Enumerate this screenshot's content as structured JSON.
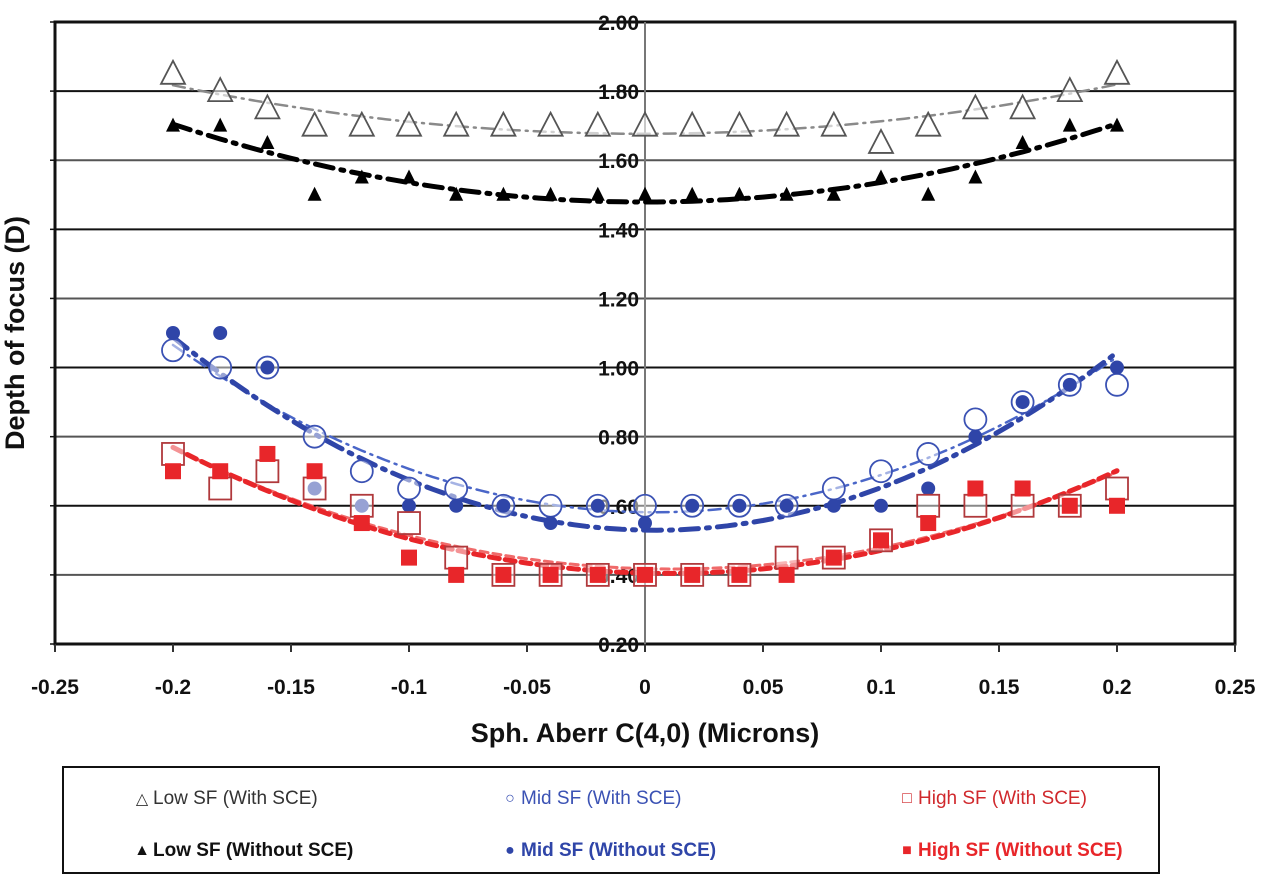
{
  "chart_data": {
    "type": "scatter",
    "title": "",
    "xlabel": "Sph. Aberr C(4,0) (Microns)",
    "ylabel": "Depth of focus (D)",
    "xlim": [
      -0.25,
      0.25
    ],
    "ylim": [
      0.2,
      2.0
    ],
    "xticks": [
      "-0.25",
      "-0.2",
      "-0.15",
      "-0.1",
      "-0.05",
      "0",
      "0.05",
      "0.1",
      "0.15",
      "0.2",
      "0.25"
    ],
    "xtick_values": [
      -0.25,
      -0.2,
      -0.15,
      -0.1,
      -0.05,
      0,
      0.05,
      0.1,
      0.15,
      0.2,
      0.25
    ],
    "yticks": [
      "0.20",
      "0.40",
      "0.60",
      "0.80",
      "1.00",
      "1.20",
      "1.40",
      "1.60",
      "1.80",
      "2.00"
    ],
    "ytick_values": [
      0.2,
      0.4,
      0.6,
      0.8,
      1.0,
      1.2,
      1.4,
      1.6,
      1.8,
      2.0
    ],
    "grid": "horizontal",
    "legend_position": "bottom",
    "trendlines": "quadratic fit per series (dash-dot / dashed)",
    "x": [
      -0.2,
      -0.18,
      -0.16,
      -0.14,
      -0.12,
      -0.1,
      -0.08,
      -0.06,
      -0.04,
      -0.02,
      0,
      0.02,
      0.04,
      0.06,
      0.08,
      0.1,
      0.12,
      0.14,
      0.16,
      0.18,
      0.2
    ],
    "series": [
      {
        "name": "Low SF (With SCE)",
        "marker": "triangle-open",
        "color": "#555555",
        "line": "dash-dot",
        "line_color": "#8a8a8a",
        "values": [
          1.85,
          1.8,
          1.75,
          1.7,
          1.7,
          1.7,
          1.7,
          1.7,
          1.7,
          1.7,
          1.7,
          1.7,
          1.7,
          1.7,
          1.7,
          1.65,
          1.7,
          1.75,
          1.75,
          1.8,
          1.85
        ]
      },
      {
        "name": "Low SF (Without SCE)",
        "marker": "triangle-filled",
        "color": "#000000",
        "line": "dash-dot-bold",
        "line_color": "#000000",
        "values": [
          1.7,
          1.7,
          1.65,
          1.5,
          1.55,
          1.55,
          1.5,
          1.5,
          1.5,
          1.5,
          1.5,
          1.5,
          1.5,
          1.5,
          1.5,
          1.55,
          1.5,
          1.55,
          1.65,
          1.7,
          1.7
        ]
      },
      {
        "name": "Mid SF (With SCE)",
        "marker": "circle-open",
        "color": "#3b52b4",
        "line": "dash-dot",
        "line_color": "#4a66c8",
        "values": [
          1.05,
          1.0,
          1.0,
          0.8,
          0.7,
          0.65,
          0.65,
          0.6,
          0.6,
          0.6,
          0.6,
          0.6,
          0.6,
          0.6,
          0.65,
          0.7,
          0.75,
          0.85,
          0.9,
          0.95,
          0.95
        ]
      },
      {
        "name": "Mid SF (Without SCE)",
        "marker": "circle-filled",
        "color": "#2f45a8",
        "line": "dash-dot-bold",
        "line_color": "#2f45a8",
        "values": [
          1.1,
          1.1,
          1.0,
          0.65,
          0.6,
          0.6,
          0.6,
          0.6,
          0.55,
          0.6,
          0.55,
          0.6,
          0.6,
          0.6,
          0.6,
          0.6,
          0.65,
          0.8,
          0.9,
          0.95,
          1.0
        ]
      },
      {
        "name": "High SF (With SCE)",
        "marker": "square-open",
        "color": "#b0393c",
        "line": "dashed",
        "line_color": "#f06a6a",
        "values": [
          0.75,
          0.65,
          0.7,
          0.65,
          0.6,
          0.55,
          0.45,
          0.4,
          0.4,
          0.4,
          0.4,
          0.4,
          0.4,
          0.45,
          0.45,
          0.5,
          0.6,
          0.6,
          0.6,
          0.6,
          0.65
        ]
      },
      {
        "name": "High SF (Without SCE)",
        "marker": "square-filled",
        "color": "#e8262a",
        "line": "dashed-bold",
        "line_color": "#e8262a",
        "values": [
          0.7,
          0.7,
          0.75,
          0.7,
          0.55,
          0.45,
          0.4,
          0.4,
          0.4,
          0.4,
          0.4,
          0.4,
          0.4,
          0.4,
          0.45,
          0.5,
          0.55,
          0.65,
          0.65,
          0.6,
          0.6
        ]
      }
    ]
  },
  "legend": {
    "items": [
      {
        "label": "Low SF  (With SCE)",
        "symbol": "△",
        "color": "#333333",
        "bold": false
      },
      {
        "label": "Mid SF  (With SCE)",
        "symbol": "○",
        "color": "#3b52b4",
        "bold": false
      },
      {
        "label": "High SF  (With SCE)",
        "symbol": "□",
        "color": "#d0282c",
        "bold": false
      },
      {
        "label": "Low SF (Without SCE)",
        "symbol": "▲",
        "color": "#111111",
        "bold": true
      },
      {
        "label": "Mid SF (Without SCE)",
        "symbol": "●",
        "color": "#2f45a8",
        "bold": true
      },
      {
        "label": "High SF (Without SCE)",
        "symbol": "■",
        "color": "#e8262a",
        "bold": true
      }
    ]
  }
}
